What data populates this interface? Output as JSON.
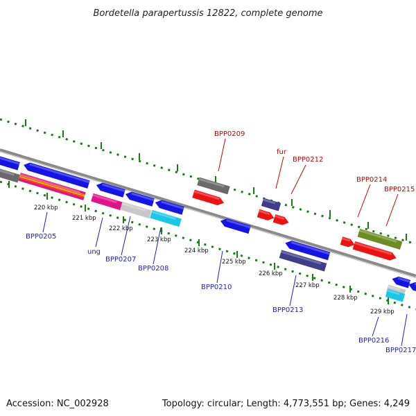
{
  "title": "Bordetella parapertussis 12822, complete genome",
  "footer": {
    "accession": "Accession: NC_002928",
    "topology": "Topology: circular; Length: 4,773,551 bp; Genes: 4,249"
  },
  "colors": {
    "blue": "#1414e6",
    "red": "#ee1111",
    "gray": "#6a6a6a",
    "dark_slate": "#3f3c8a",
    "olive": "#6b8e23",
    "magenta": "#e0138a",
    "light_gray": "#c8c8c8",
    "cyan": "#19c8e6",
    "ruler_green": "#1a7a1a",
    "backbone": "#8f8f8f",
    "label_blue": "#1d1dc8",
    "label_red": "#cc0000"
  },
  "ticks": [
    {
      "label": "220 kbp"
    },
    {
      "label": "221 kbp"
    },
    {
      "label": "222 kbp"
    },
    {
      "label": "223 kbp"
    },
    {
      "label": "224 kbp"
    },
    {
      "label": "225 kbp"
    },
    {
      "label": "226 kbp"
    },
    {
      "label": "227 kbp"
    },
    {
      "label": "228 kbp"
    },
    {
      "label": "229 kbp"
    }
  ],
  "gene_labels": [
    {
      "name": "BPP0205",
      "color": "blue"
    },
    {
      "name": "ung",
      "color": "blue"
    },
    {
      "name": "BPP0207",
      "color": "blue"
    },
    {
      "name": "BPP0208",
      "color": "blue"
    },
    {
      "name": "BPP0210",
      "color": "blue"
    },
    {
      "name": "BPP0213",
      "color": "blue"
    },
    {
      "name": "BPP0216",
      "color": "blue"
    },
    {
      "name": "BPP0217",
      "color": "blue"
    },
    {
      "name": "BPP0209",
      "color": "red"
    },
    {
      "name": "fur",
      "color": "red"
    },
    {
      "name": "BPP0212",
      "color": "red"
    },
    {
      "name": "BPP0214",
      "color": "red"
    },
    {
      "name": "BPP0215",
      "color": "red"
    }
  ]
}
